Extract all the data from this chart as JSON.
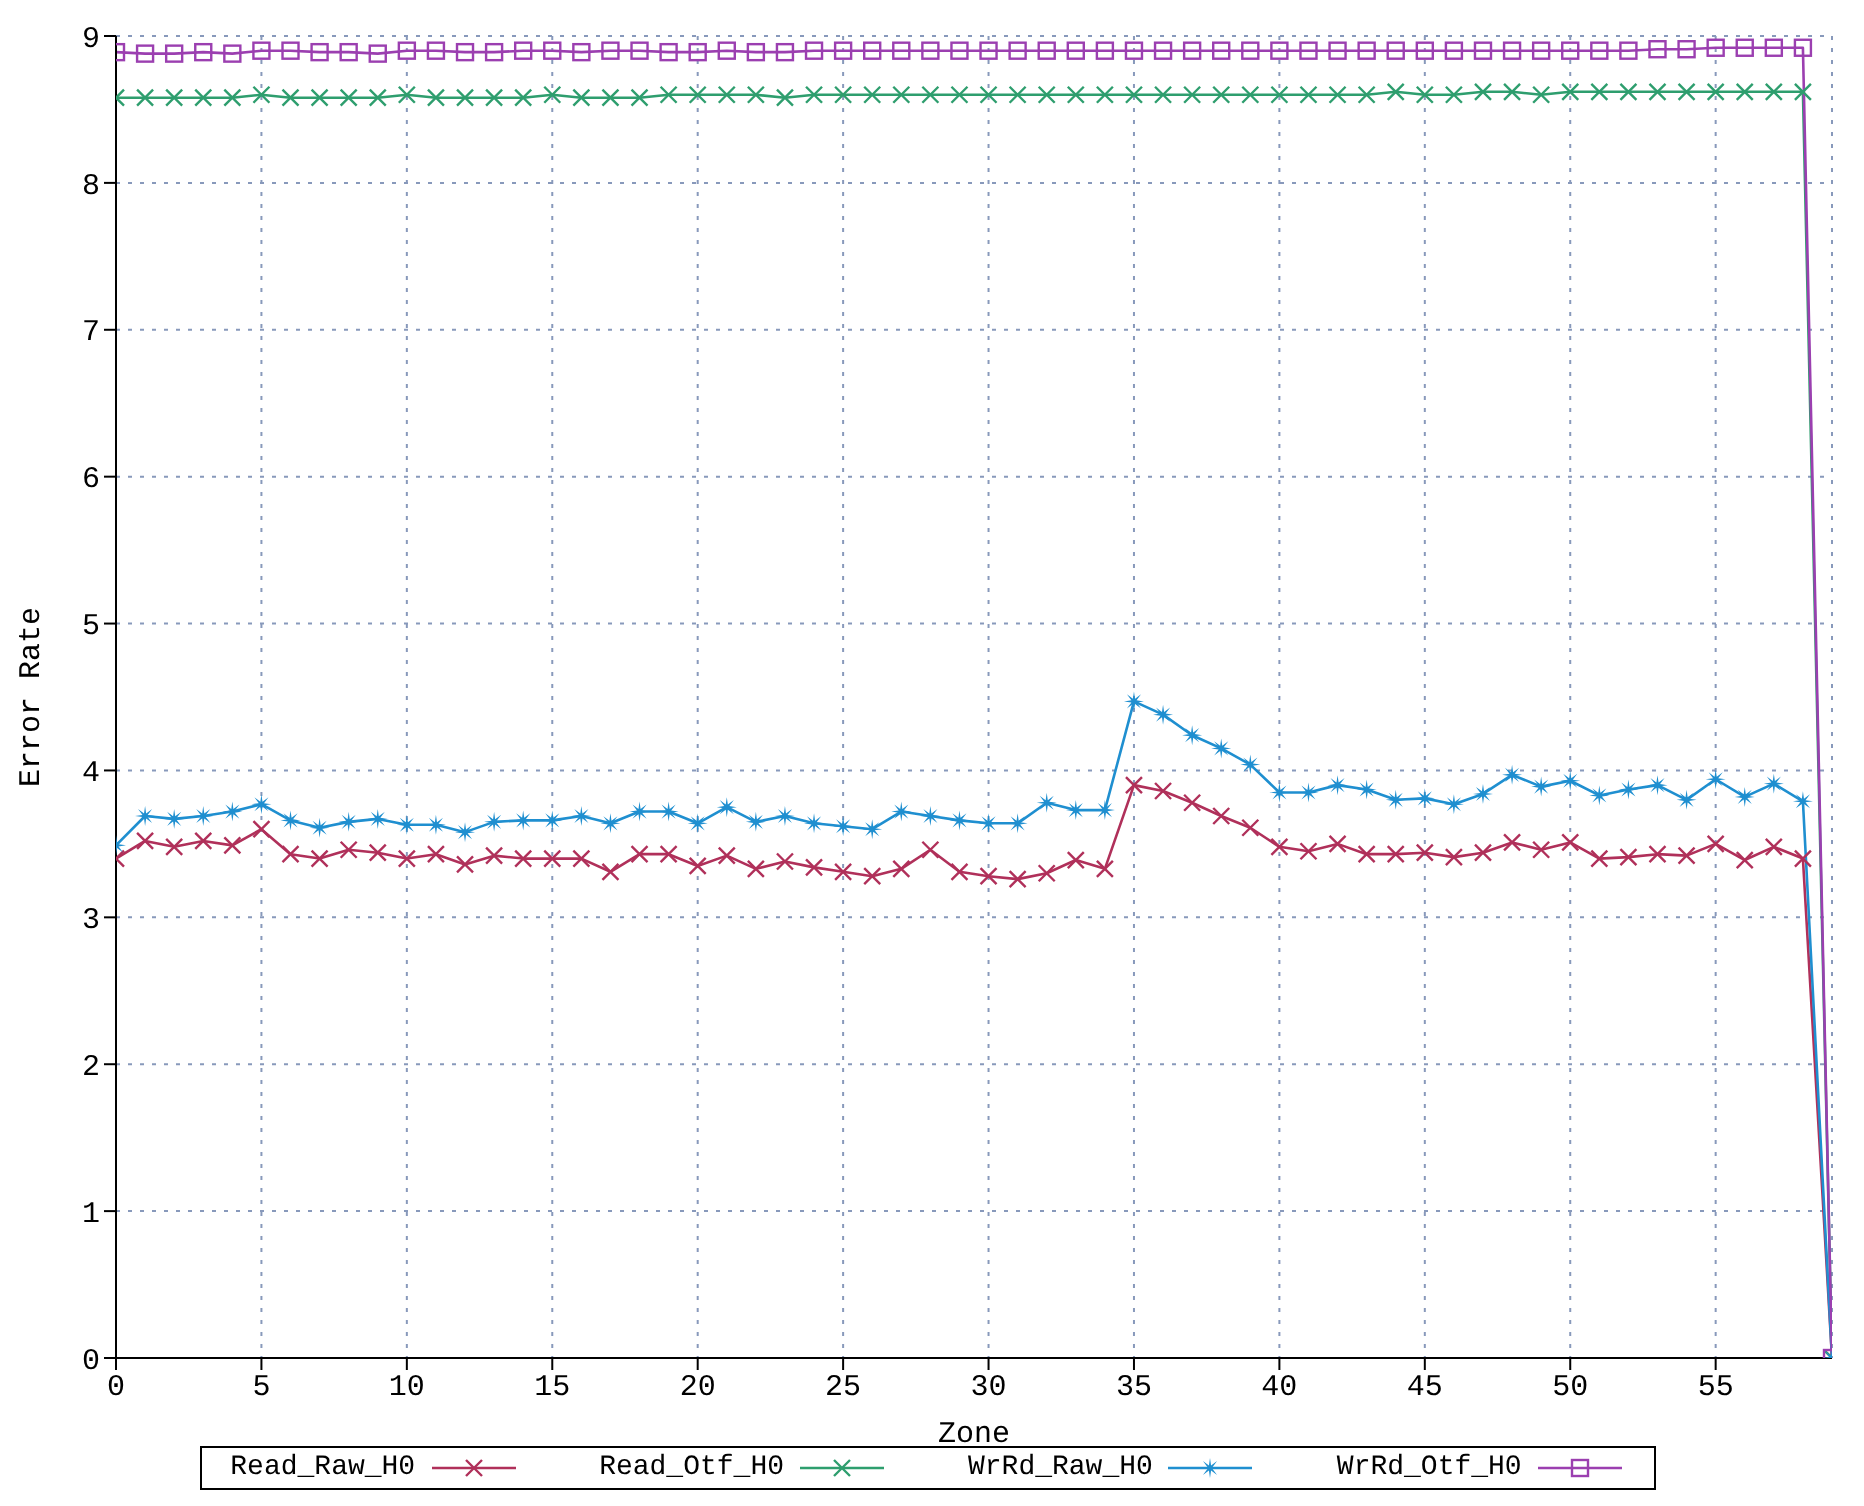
{
  "chart_data": {
    "type": "line",
    "xlabel": "Zone",
    "ylabel": "Error Rate",
    "x": [
      0,
      1,
      2,
      3,
      4,
      5,
      6,
      7,
      8,
      9,
      10,
      11,
      12,
      13,
      14,
      15,
      16,
      17,
      18,
      19,
      20,
      21,
      22,
      23,
      24,
      25,
      26,
      27,
      28,
      29,
      30,
      31,
      32,
      33,
      34,
      35,
      36,
      37,
      38,
      39,
      40,
      41,
      42,
      43,
      44,
      45,
      46,
      47,
      48,
      49,
      50,
      51,
      52,
      53,
      54,
      55,
      56,
      57,
      58,
      59
    ],
    "xlim": [
      0,
      59
    ],
    "xticks": [
      0,
      5,
      10,
      15,
      20,
      25,
      30,
      35,
      40,
      45,
      50,
      55
    ],
    "ylim": [
      0,
      9
    ],
    "yticks": [
      0,
      1,
      2,
      3,
      4,
      5,
      6,
      7,
      8,
      9
    ],
    "grid": true,
    "legend": "bottom",
    "line_style": "solid",
    "series": [
      {
        "name": "Read_Raw_H0",
        "color": "#b0305a",
        "marker": "cross",
        "values": [
          3.4,
          3.52,
          3.48,
          3.52,
          3.49,
          3.6,
          3.43,
          3.4,
          3.46,
          3.44,
          3.4,
          3.43,
          3.36,
          3.42,
          3.4,
          3.4,
          3.4,
          3.31,
          3.43,
          3.43,
          3.35,
          3.42,
          3.33,
          3.38,
          3.34,
          3.31,
          3.28,
          3.33,
          3.46,
          3.31,
          3.28,
          3.26,
          3.3,
          3.39,
          3.33,
          3.9,
          3.86,
          3.78,
          3.69,
          3.61,
          3.48,
          3.45,
          3.5,
          3.43,
          3.43,
          3.44,
          3.41,
          3.44,
          3.51,
          3.46,
          3.51,
          3.4,
          3.41,
          3.43,
          3.42,
          3.5,
          3.39,
          3.48,
          3.4,
          0
        ]
      },
      {
        "name": "Read_Otf_H0",
        "color": "#2e9e6e",
        "marker": "cross",
        "values": [
          8.58,
          8.58,
          8.58,
          8.58,
          8.58,
          8.6,
          8.58,
          8.58,
          8.58,
          8.58,
          8.6,
          8.58,
          8.58,
          8.58,
          8.58,
          8.6,
          8.58,
          8.58,
          8.58,
          8.6,
          8.6,
          8.6,
          8.6,
          8.58,
          8.6,
          8.6,
          8.6,
          8.6,
          8.6,
          8.6,
          8.6,
          8.6,
          8.6,
          8.6,
          8.6,
          8.6,
          8.6,
          8.6,
          8.6,
          8.6,
          8.6,
          8.6,
          8.6,
          8.6,
          8.62,
          8.6,
          8.6,
          8.62,
          8.62,
          8.6,
          8.62,
          8.62,
          8.62,
          8.62,
          8.62,
          8.62,
          8.62,
          8.62,
          8.62,
          0
        ]
      },
      {
        "name": "WrRd_Raw_H0",
        "color": "#1f8fd0",
        "marker": "star",
        "values": [
          3.49,
          3.69,
          3.67,
          3.69,
          3.72,
          3.77,
          3.66,
          3.61,
          3.65,
          3.67,
          3.63,
          3.63,
          3.58,
          3.65,
          3.66,
          3.66,
          3.69,
          3.64,
          3.72,
          3.72,
          3.64,
          3.75,
          3.65,
          3.69,
          3.64,
          3.62,
          3.6,
          3.72,
          3.69,
          3.66,
          3.64,
          3.64,
          3.78,
          3.73,
          3.73,
          4.47,
          4.38,
          4.24,
          4.15,
          4.04,
          3.85,
          3.85,
          3.9,
          3.87,
          3.8,
          3.81,
          3.77,
          3.84,
          3.97,
          3.89,
          3.93,
          3.83,
          3.87,
          3.9,
          3.8,
          3.94,
          3.82,
          3.91,
          3.79,
          0
        ]
      },
      {
        "name": "WrRd_Otf_H0",
        "color": "#9b3fb0",
        "marker": "square",
        "values": [
          8.89,
          8.88,
          8.88,
          8.89,
          8.88,
          8.9,
          8.9,
          8.89,
          8.89,
          8.88,
          8.9,
          8.9,
          8.89,
          8.89,
          8.9,
          8.9,
          8.89,
          8.9,
          8.9,
          8.89,
          8.89,
          8.9,
          8.89,
          8.89,
          8.9,
          8.9,
          8.9,
          8.9,
          8.9,
          8.9,
          8.9,
          8.9,
          8.9,
          8.9,
          8.9,
          8.9,
          8.9,
          8.9,
          8.9,
          8.9,
          8.9,
          8.9,
          8.9,
          8.9,
          8.9,
          8.9,
          8.9,
          8.9,
          8.9,
          8.9,
          8.9,
          8.9,
          8.9,
          8.91,
          8.91,
          8.92,
          8.92,
          8.92,
          8.92,
          0
        ]
      }
    ]
  }
}
